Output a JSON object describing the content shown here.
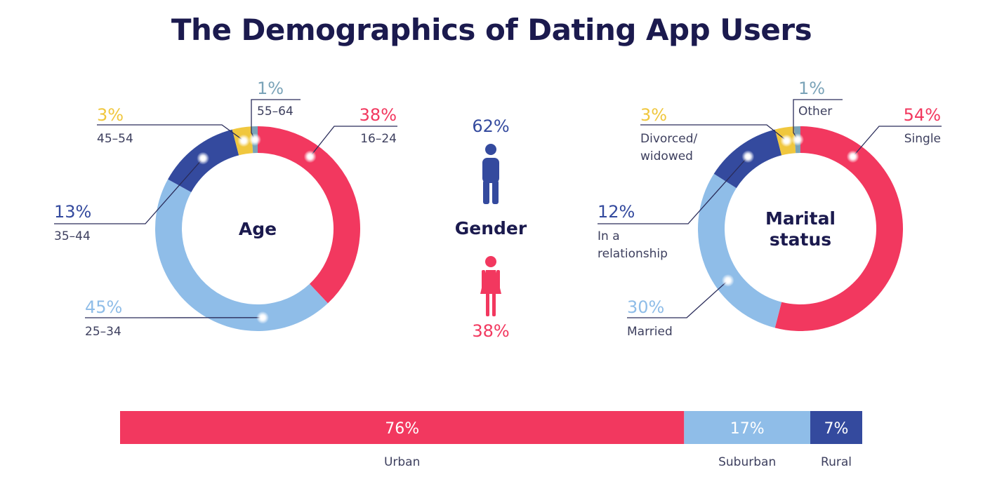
{
  "title": "The Demographics of Dating App Users",
  "colors": {
    "red": "#f2385f",
    "light_blue": "#8fbde8",
    "navy": "#344a9e",
    "yellow": "#f0c73e",
    "steel": "#7aa3b8",
    "text_dark": "#1b1a4e",
    "text_gray": "#3d3f5e"
  },
  "chart_data": [
    {
      "type": "donut",
      "name": "age",
      "center_label": "Age",
      "categories": [
        "16-24",
        "25-34",
        "35-44",
        "45-54",
        "55-64"
      ],
      "values": [
        38,
        45,
        13,
        3,
        1
      ],
      "labels": [
        "38%",
        "45%",
        "13%",
        "3%",
        "1%"
      ],
      "colors": [
        "#f2385f",
        "#8fbde8",
        "#344a9e",
        "#f0c73e",
        "#7aa3b8"
      ]
    },
    {
      "type": "pictogram",
      "name": "gender",
      "center_label": "Gender",
      "categories": [
        "male",
        "female"
      ],
      "values": [
        62,
        38
      ],
      "labels": [
        "62%",
        "38%"
      ],
      "colors": [
        "#344a9e",
        "#f2385f"
      ]
    },
    {
      "type": "donut",
      "name": "marital",
      "center_label": [
        "Marital",
        "status"
      ],
      "categories": [
        "Single",
        "Married",
        "In a relationship",
        "Divorced/ widowed",
        "Other"
      ],
      "category_lines": [
        [
          "Single"
        ],
        [
          "Married"
        ],
        [
          "In a",
          "relationship"
        ],
        [
          "Divorced/",
          "widowed"
        ],
        [
          "Other"
        ]
      ],
      "values": [
        54,
        30,
        12,
        3,
        1
      ],
      "labels": [
        "54%",
        "30%",
        "12%",
        "3%",
        "1%"
      ],
      "colors": [
        "#f2385f",
        "#8fbde8",
        "#344a9e",
        "#f0c73e",
        "#7aa3b8"
      ]
    },
    {
      "type": "stacked_bar",
      "name": "location",
      "categories": [
        "Urban",
        "Suburban",
        "Rural"
      ],
      "values": [
        76,
        17,
        7
      ],
      "labels": [
        "76%",
        "17%",
        "7%"
      ],
      "colors": [
        "#f2385f",
        "#8fbde8",
        "#344a9e"
      ]
    }
  ]
}
